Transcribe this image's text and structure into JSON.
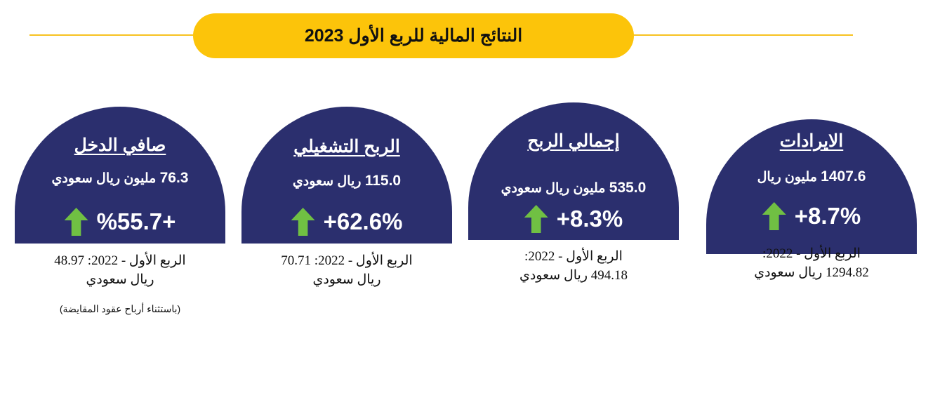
{
  "header": {
    "title": "النتائج المالية للربع الأول 2023"
  },
  "cards": [
    {
      "title": "الايرادات",
      "value_num": "1407.6",
      "value_text": "مليون ريال",
      "change": "+8.7%",
      "prev_line1": "الربع الأول - 2022:",
      "prev_line2_num": "1294.82",
      "prev_line2_text": "ريال سعودي"
    },
    {
      "title": "إجمالي الربح",
      "value_num": "535.0",
      "value_text": "مليون ريال سعودي",
      "change": "+8.3%",
      "prev_line1": "الربع الأول - 2022:",
      "prev_line2_num": "494.18",
      "prev_line2_text": "ريال سعودي"
    },
    {
      "title": "الربح التشغيلي",
      "value_num": "115.0",
      "value_text": "ريال سعودي",
      "change": "+62.6%",
      "prev_line1": "الربع الأول - 2022: 70.71",
      "prev_line2_text": "ريال سعودي"
    },
    {
      "title": "صافي الدخل",
      "value_num": "76.3",
      "value_text": "مليون ريال سعودي",
      "change": "%55.7+",
      "prev_line1": "الربع الأول - 2022: 48.97",
      "prev_line2_text": "ريال سعودي",
      "note": "(باستثناء أرباح عقود المقايضة)"
    }
  ],
  "colors": {
    "banner": "#fcc40a",
    "dome": "#2b2f6e",
    "arrow": "#70c043",
    "rule": "#f7c21f"
  },
  "icons": {
    "change_indicator": "arrow-up-icon"
  }
}
